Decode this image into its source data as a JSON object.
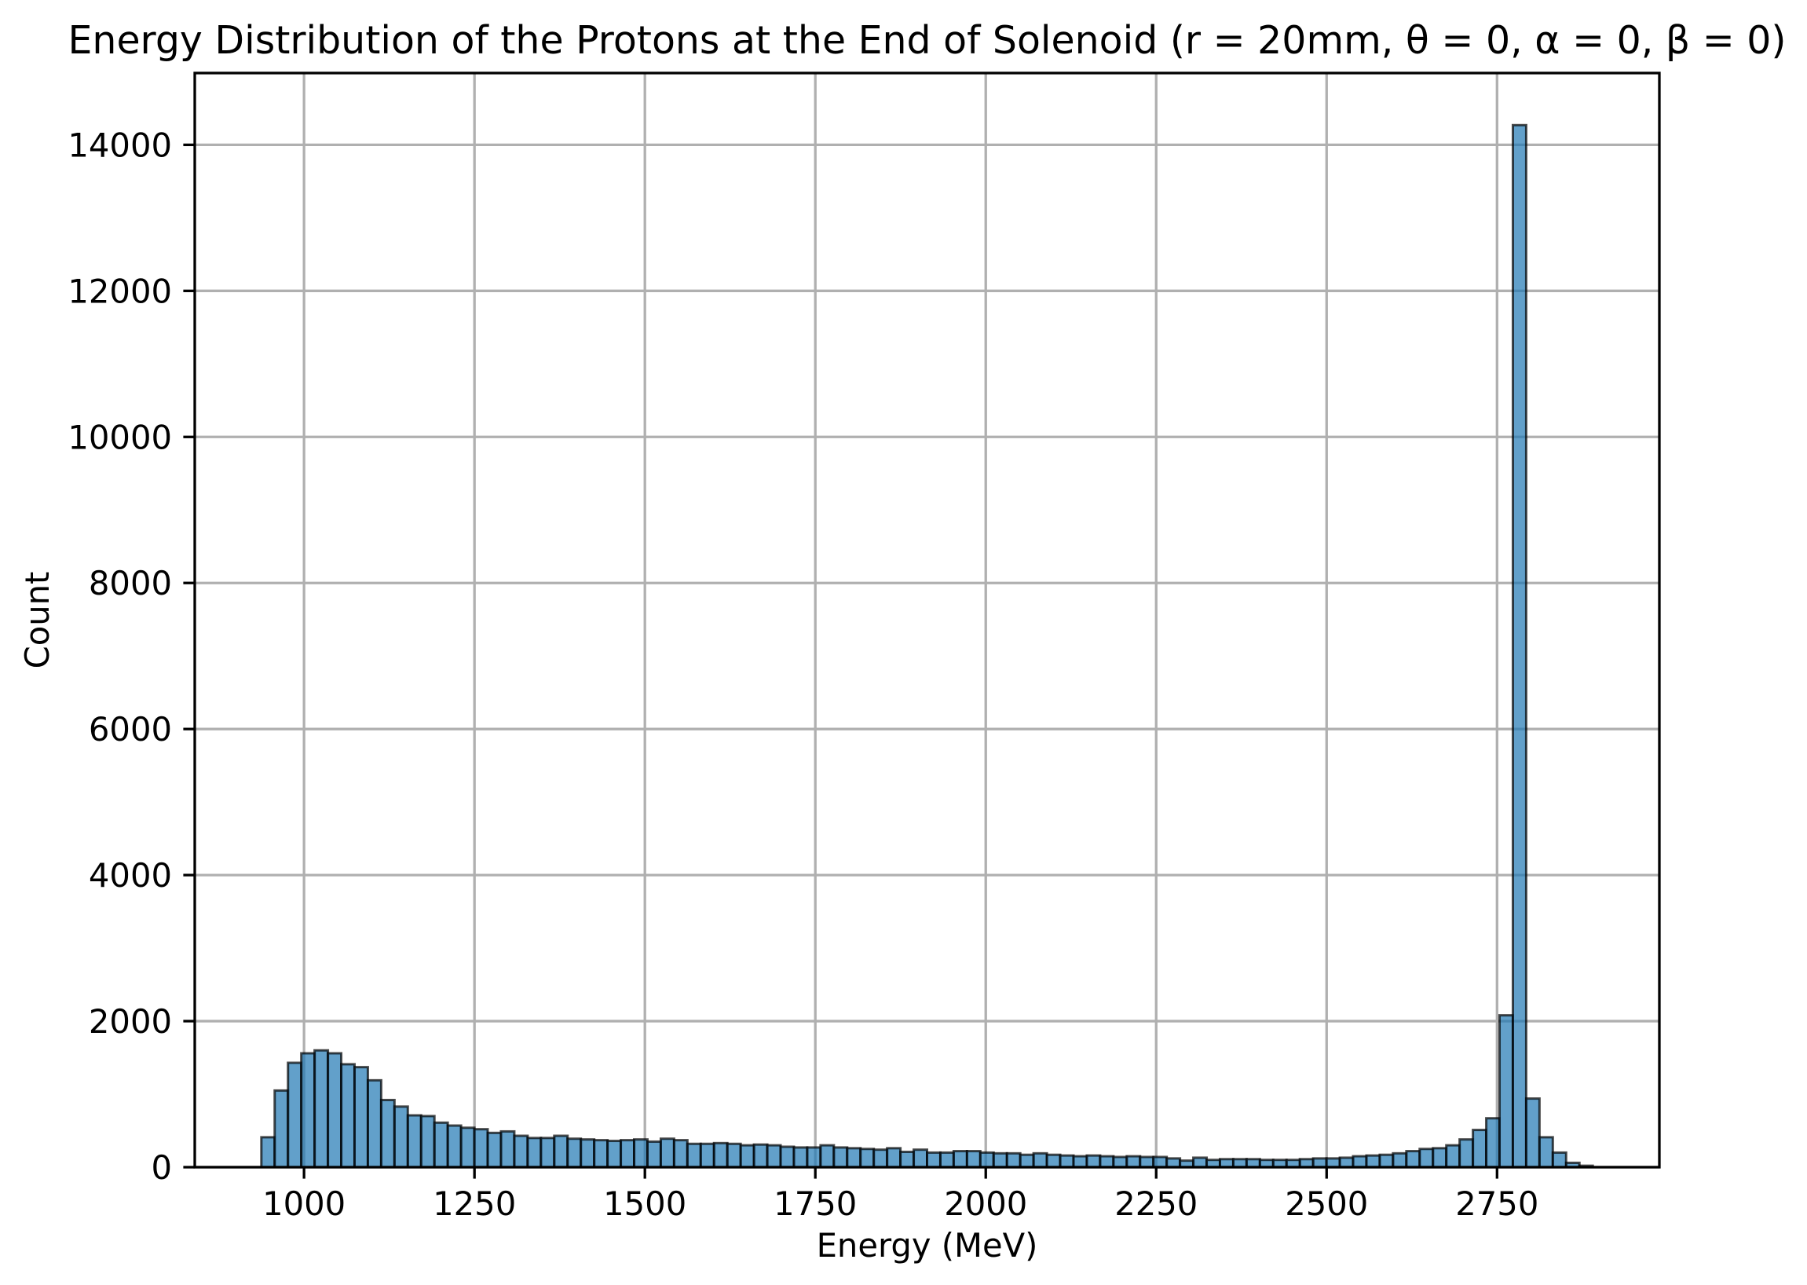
{
  "chart_data": {
    "type": "bar",
    "title": "Energy Distribution of the Protons at the End of Solenoid (r = 20mm, θ = 0, α = 0, β = 0)",
    "xlabel": "Energy (MeV)",
    "ylabel": "Count",
    "bin_range": [
      937.4,
      2890.4
    ],
    "counts": [
      410,
      1050,
      1430,
      1560,
      1600,
      1560,
      1410,
      1370,
      1190,
      920,
      830,
      710,
      700,
      610,
      570,
      540,
      520,
      470,
      490,
      430,
      400,
      400,
      430,
      390,
      380,
      370,
      360,
      370,
      380,
      350,
      390,
      370,
      320,
      320,
      330,
      320,
      300,
      310,
      300,
      280,
      270,
      270,
      300,
      270,
      260,
      250,
      240,
      260,
      210,
      240,
      200,
      200,
      220,
      220,
      200,
      190,
      190,
      170,
      190,
      170,
      160,
      150,
      160,
      150,
      140,
      150,
      140,
      140,
      120,
      90,
      130,
      100,
      110,
      110,
      110,
      100,
      100,
      100,
      110,
      120,
      120,
      130,
      150,
      160,
      170,
      190,
      220,
      250,
      260,
      300,
      380,
      510,
      670,
      2080,
      14270,
      940,
      410,
      200,
      60,
      20
    ],
    "xlim": [
      839.7,
      2988.1
    ],
    "ylim": [
      0,
      14983
    ],
    "xticks": [
      1000,
      1250,
      1500,
      1750,
      2000,
      2250,
      2500,
      2750
    ],
    "xticklabels": [
      "1000",
      "1250",
      "1500",
      "1750",
      "2000",
      "2250",
      "2500",
      "2750"
    ],
    "yticks": [
      0,
      2000,
      4000,
      6000,
      8000,
      10000,
      12000,
      14000
    ],
    "yticklabels": [
      "0",
      "2000",
      "4000",
      "6000",
      "8000",
      "10000",
      "12000",
      "14000"
    ],
    "grid": true
  },
  "colors": {
    "bar_fill": "#1f77b4",
    "bar_edge": "#000000",
    "grid": "#b0b0b0",
    "axes": "#000000",
    "background": "#ffffff"
  }
}
